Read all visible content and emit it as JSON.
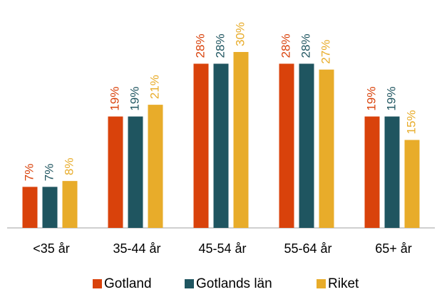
{
  "chart_data": {
    "type": "bar",
    "categories": [
      "<35 år",
      "35-44 år",
      "45-54 år",
      "55-64 år",
      "65+ år"
    ],
    "series": [
      {
        "name": "Gotland",
        "color": "#d9420b",
        "values": [
          7,
          19,
          28,
          28,
          19
        ],
        "value_labels": [
          "7%",
          "19%",
          "28%",
          "28%",
          "19%"
        ]
      },
      {
        "name": "Gotlands län",
        "color": "#1f5560",
        "values": [
          7,
          19,
          28,
          28,
          19
        ],
        "value_labels": [
          "7%",
          "19%",
          "28%",
          "28%",
          "19%"
        ]
      },
      {
        "name": "Riket",
        "color": "#e8ac2a",
        "values": [
          8,
          21,
          30,
          27,
          15
        ],
        "value_labels": [
          "8%",
          "21%",
          "30%",
          "27%",
          "15%"
        ]
      }
    ],
    "legend": "bottom"
  }
}
